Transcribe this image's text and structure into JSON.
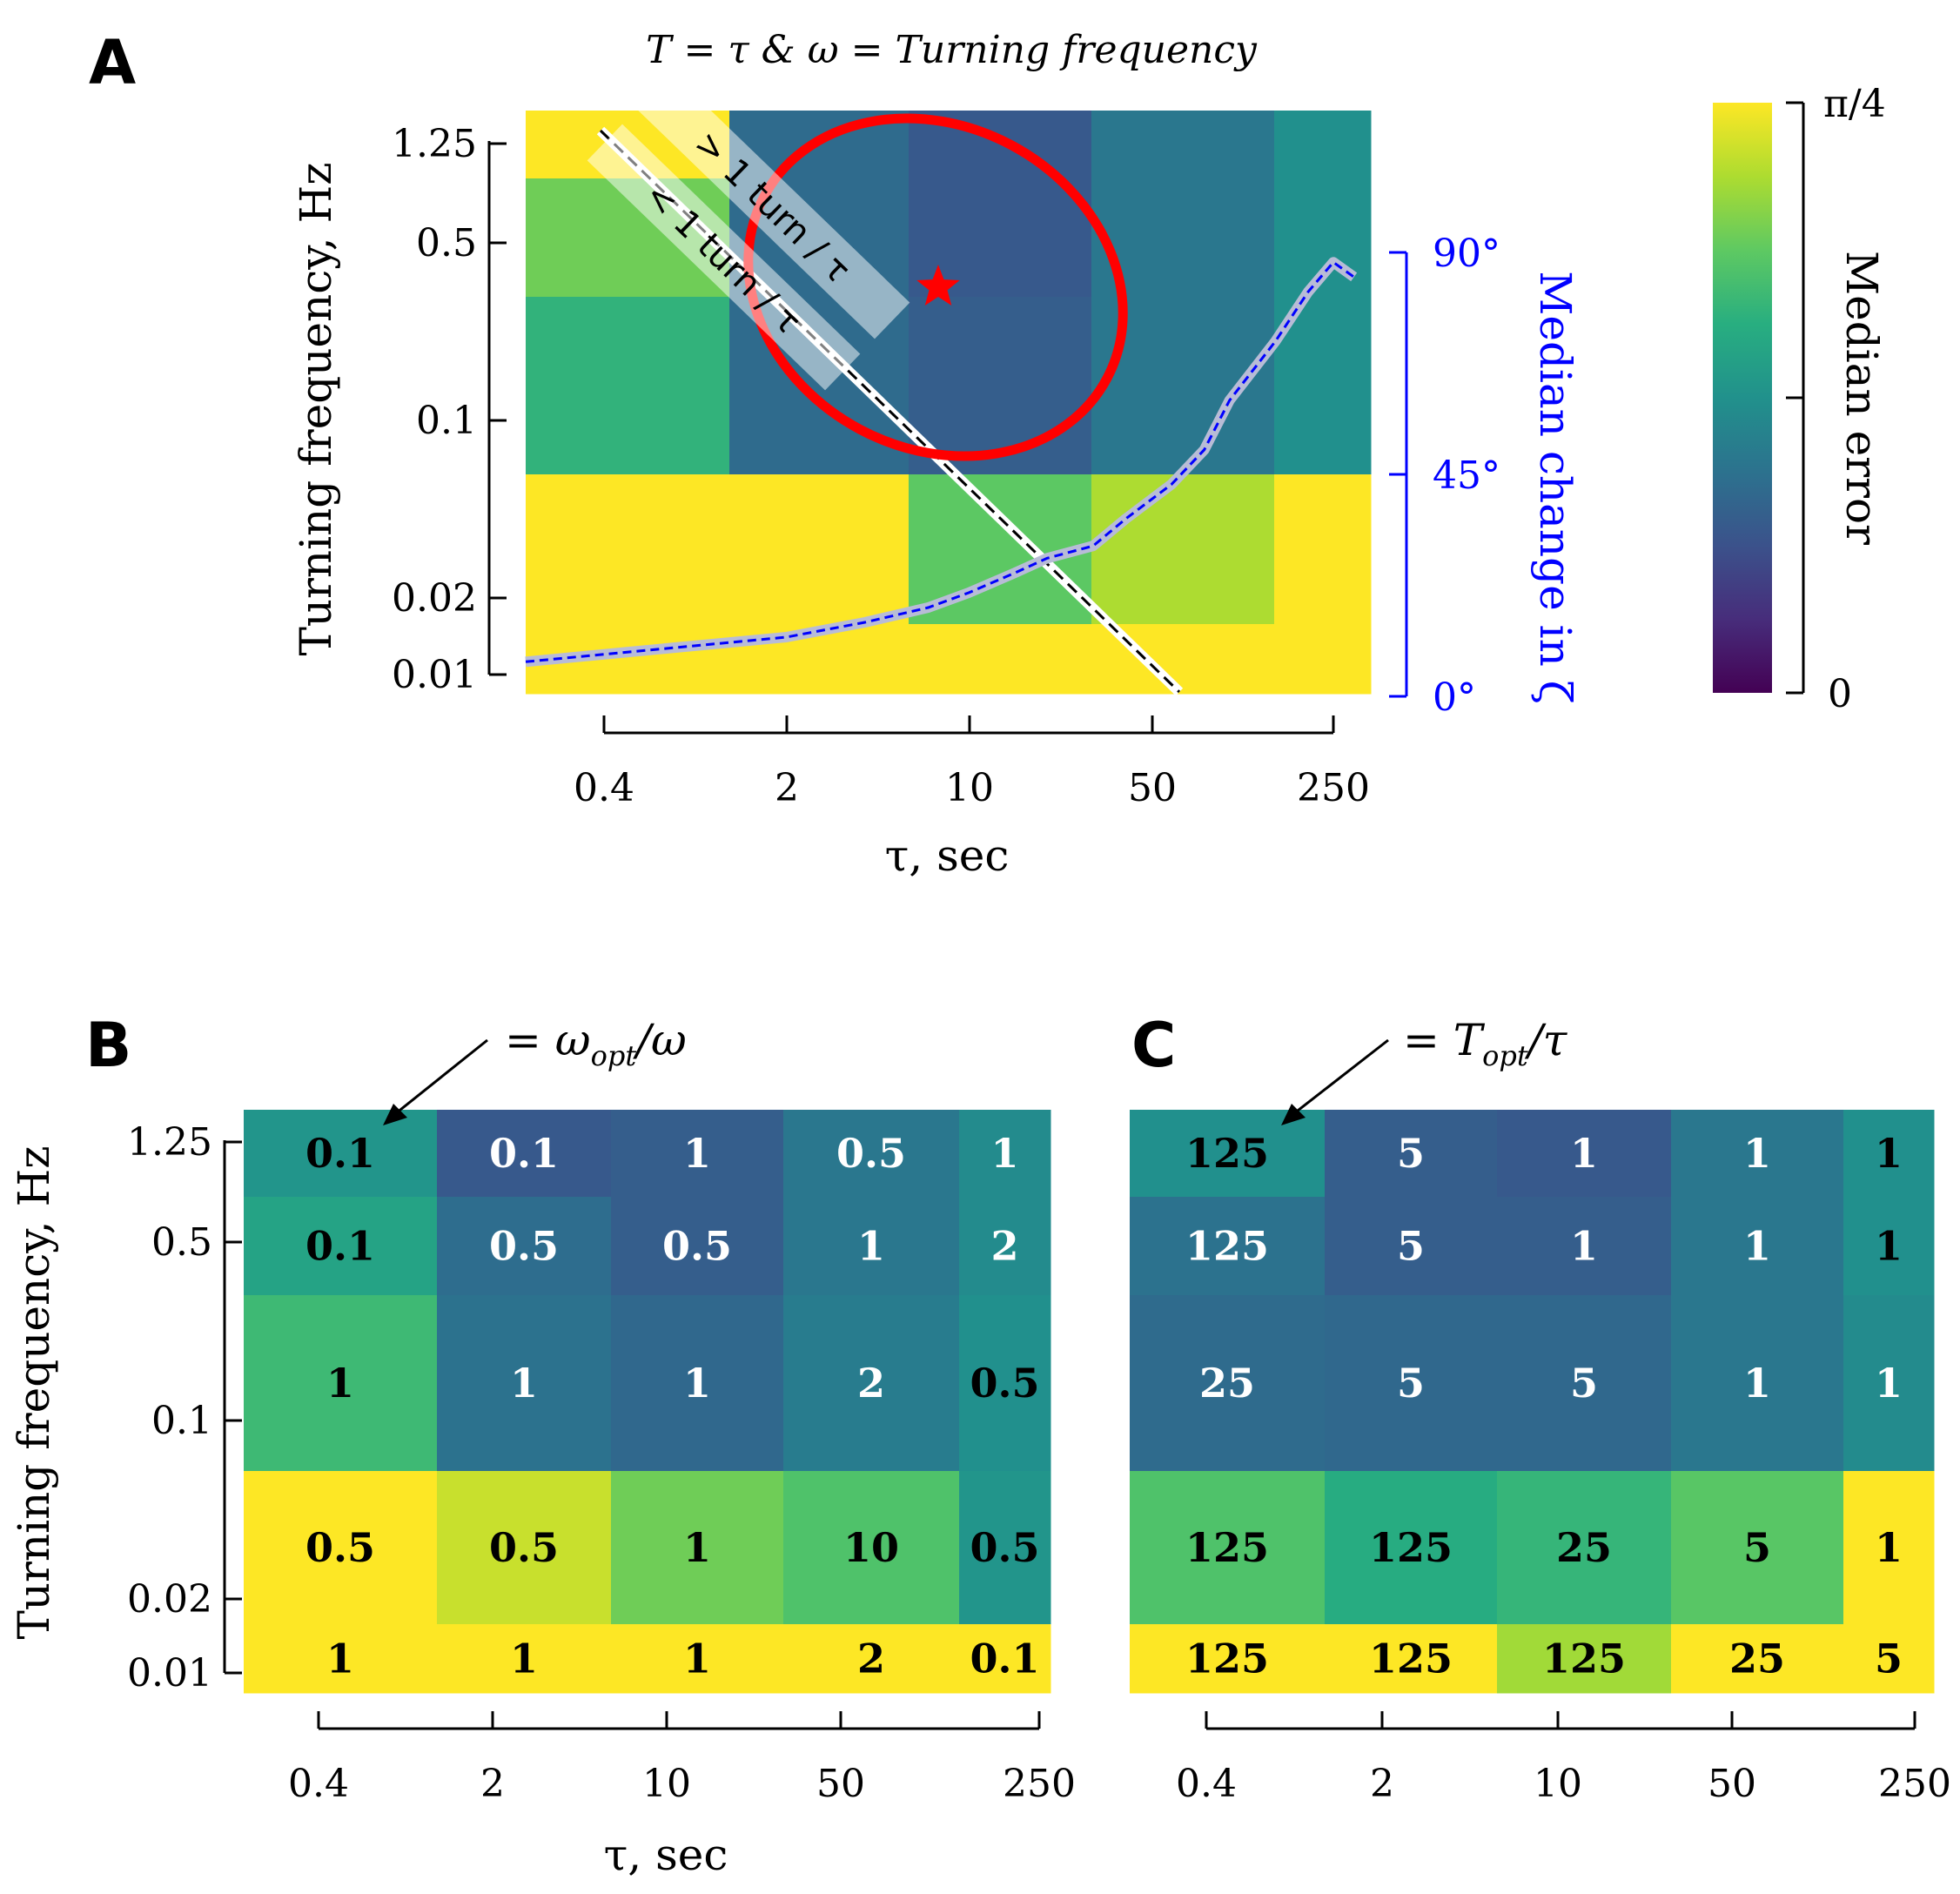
{
  "colors": {
    "ellipse": "#ff0000",
    "star": "#ff0000",
    "line_blue": "#0000ff",
    "cell_text_dark": "#000000",
    "cell_text_light": "#ffffff"
  },
  "panel_labels": {
    "a": "A",
    "b": "B",
    "c": "C"
  },
  "panel_a": {
    "title": "T = τ   &   ω = Turning frequency",
    "ylabel": "Turning frequency, Hz",
    "xlabel": "τ, sec",
    "xticks": [
      "0.4",
      "2",
      "10",
      "50",
      "250"
    ],
    "yticks": [
      "1.25",
      "0.5",
      "0.1",
      "0.02",
      "0.01"
    ],
    "right_axis_label": "Median change in ζ",
    "right_ticks": [
      "90°",
      "45°",
      "0°"
    ],
    "annot_above": "> 1 turn / τ",
    "annot_below": "< 1 turn / τ"
  },
  "colorbar": {
    "label": "Median error",
    "top_tick": "π/4",
    "bottom_tick": "0"
  },
  "panel_b": {
    "annotation": "= ω_opt / ω",
    "annotation_main": "= ω",
    "annotation_sub": "opt",
    "annotation_tail": "/ω",
    "ylabel": "Turning frequency, Hz",
    "xlabel": "τ, sec",
    "xticks": [
      "0.4",
      "2",
      "10",
      "50",
      "250"
    ],
    "yticks": [
      "1.25",
      "0.5",
      "0.1",
      "0.02",
      "0.01"
    ]
  },
  "panel_c": {
    "annotation": "= T_opt / τ",
    "annotation_main": "= T",
    "annotation_sub": "opt",
    "annotation_tail": "/τ",
    "xticks": [
      "0.4",
      "2",
      "10",
      "50",
      "250"
    ]
  },
  "chart_data": [
    {
      "type": "heatmap",
      "panel": "A",
      "title": "T = τ   &   ω = Turning frequency",
      "xlabel": "τ, sec",
      "ylabel": "Turning frequency, Hz",
      "x_categories": [
        "0.4",
        "2",
        "10",
        "50",
        "250"
      ],
      "y_categories": [
        "1.25",
        "0.5",
        "0.1",
        "0.02",
        "0.01"
      ],
      "color_scale": "viridis",
      "color_range": [
        "0",
        "π/4"
      ],
      "normalized_median_error": [
        [
          1.0,
          0.35,
          0.28,
          0.4,
          0.5
        ],
        [
          0.78,
          0.35,
          0.28,
          0.4,
          0.5
        ],
        [
          0.65,
          0.35,
          0.3,
          0.4,
          0.5
        ],
        [
          1.0,
          1.0,
          0.75,
          0.88,
          1.0
        ],
        [
          1.0,
          1.0,
          1.0,
          1.0,
          1.0
        ]
      ],
      "optimum_marker": {
        "tau_sec": 8,
        "freq_hz": 0.3
      },
      "one_turn_line": "ω·τ = 1",
      "median_change_in_zeta": {
        "axis": "right",
        "ylim_deg": [
          0,
          90
        ],
        "x_tau_sec": [
          0.2,
          0.5,
          1,
          2,
          4,
          7,
          10,
          15,
          20,
          30,
          40,
          60,
          80,
          100,
          150,
          200,
          250,
          300
        ],
        "y_deg": [
          7,
          9,
          10.5,
          12,
          15,
          18,
          21,
          25,
          28,
          30.5,
          36,
          43,
          50,
          60,
          72,
          82,
          88,
          85
        ]
      }
    },
    {
      "type": "heatmap",
      "panel": "B",
      "annotation": "= ω_opt / ω",
      "xlabel": "τ, sec",
      "ylabel": "Turning frequency, Hz",
      "x_categories": [
        "0.4",
        "2",
        "10",
        "50",
        "250"
      ],
      "y_categories": [
        "1.25",
        "0.5",
        "0.1",
        "0.02",
        "0.01"
      ],
      "values": [
        [
          "0.1",
          "0.1",
          "1",
          "0.5",
          "1"
        ],
        [
          "0.1",
          "0.5",
          "0.5",
          "1",
          "2"
        ],
        [
          "1",
          "1",
          "1",
          "2",
          "0.5"
        ],
        [
          "0.5",
          "0.5",
          "1",
          "10",
          "0.5"
        ],
        [
          "1",
          "1",
          "1",
          "2",
          "0.1"
        ]
      ],
      "normalized_median_error": [
        [
          0.52,
          0.28,
          0.3,
          0.4,
          0.48
        ],
        [
          0.58,
          0.36,
          0.3,
          0.4,
          0.48
        ],
        [
          0.68,
          0.38,
          0.34,
          0.42,
          0.5
        ],
        [
          1.0,
          0.92,
          0.78,
          0.72,
          0.52
        ],
        [
          1.0,
          1.0,
          1.0,
          1.0,
          1.0
        ]
      ]
    },
    {
      "type": "heatmap",
      "panel": "C",
      "annotation": "= T_opt / τ",
      "xlabel": "τ, sec",
      "x_categories": [
        "0.4",
        "2",
        "10",
        "50",
        "250"
      ],
      "y_categories": [
        "1.25",
        "0.5",
        "0.1",
        "0.02",
        "0.01"
      ],
      "values": [
        [
          "125",
          "5",
          "1",
          "1",
          "1"
        ],
        [
          "125",
          "5",
          "1",
          "1",
          "1"
        ],
        [
          "25",
          "5",
          "5",
          "1",
          "1"
        ],
        [
          "125",
          "125",
          "25",
          "5",
          "1"
        ],
        [
          "125",
          "125",
          "125",
          "25",
          "5"
        ]
      ],
      "normalized_median_error": [
        [
          0.5,
          0.3,
          0.28,
          0.4,
          0.5
        ],
        [
          0.38,
          0.3,
          0.3,
          0.4,
          0.5
        ],
        [
          0.35,
          0.34,
          0.34,
          0.4,
          0.48
        ],
        [
          0.72,
          0.62,
          0.66,
          0.74,
          1.0
        ],
        [
          1.0,
          1.0,
          0.86,
          1.0,
          1.0
        ]
      ]
    }
  ]
}
